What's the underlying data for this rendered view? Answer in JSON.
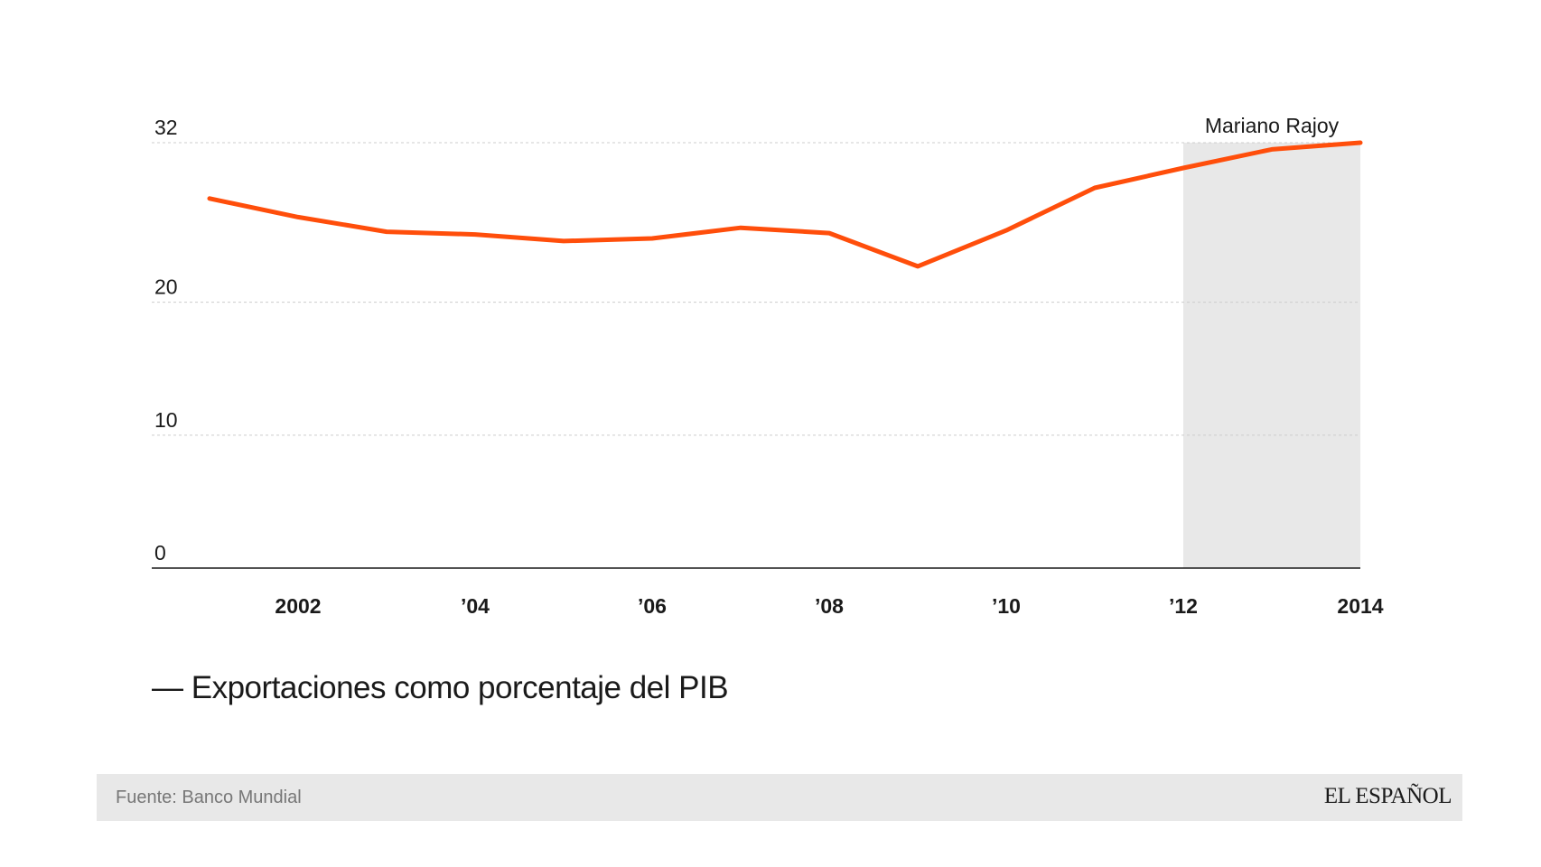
{
  "chart_data": {
    "type": "line",
    "x": [
      2001,
      2002,
      2003,
      2004,
      2005,
      2006,
      2007,
      2008,
      2009,
      2010,
      2011,
      2012,
      2013,
      2014
    ],
    "series": [
      {
        "name": "Exportaciones como porcentaje del PIB",
        "color": "#ff4e0b",
        "values": [
          27.8,
          26.4,
          25.3,
          25.1,
          24.6,
          24.8,
          25.6,
          25.2,
          22.7,
          25.4,
          28.6,
          30.1,
          31.5,
          32.0
        ]
      }
    ],
    "ylim": [
      0,
      32
    ],
    "xlim": [
      2001,
      2014
    ],
    "y_ticks": [
      {
        "value": 0,
        "label": "0"
      },
      {
        "value": 10,
        "label": "10"
      },
      {
        "value": 20,
        "label": "20"
      },
      {
        "value": 32,
        "label": "32"
      }
    ],
    "x_ticks": [
      {
        "value": 2002,
        "label": "2002"
      },
      {
        "value": 2004,
        "label": "’04"
      },
      {
        "value": 2006,
        "label": "’06"
      },
      {
        "value": 2008,
        "label": "’08"
      },
      {
        "value": 2010,
        "label": "’10"
      },
      {
        "value": 2012,
        "label": "’12"
      },
      {
        "value": 2014,
        "label": "2014"
      }
    ],
    "shaded_period": {
      "start": 2012,
      "end": 2014,
      "label": "Mariano Rajoy",
      "color": "#e8e8e8"
    },
    "grid": true,
    "legend_position": "bottom-left",
    "legend_text": "— Exportaciones como porcentaje del PIB"
  },
  "footer": {
    "source": "Fuente: Banco Mundial",
    "logo": "EL ESPAÑOL"
  }
}
